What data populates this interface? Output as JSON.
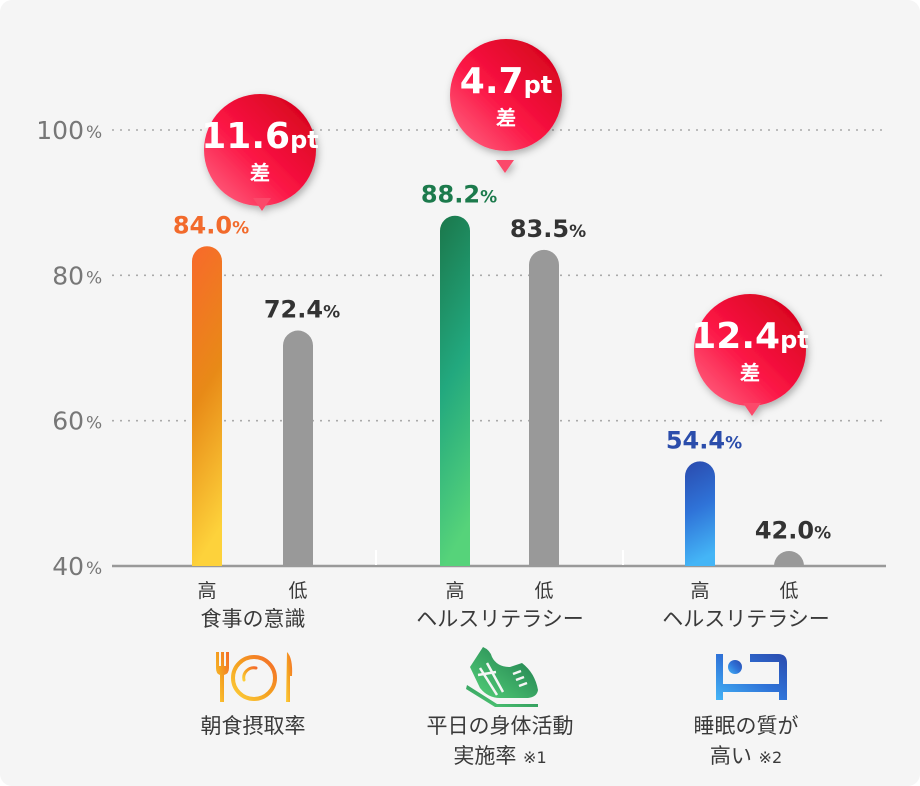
{
  "chart_data": {
    "type": "bar",
    "ylim": [
      40,
      100
    ],
    "yticks": [
      {
        "value": 100,
        "label": "100",
        "unit": "%"
      },
      {
        "value": 80,
        "label": "80",
        "unit": "%"
      },
      {
        "value": 60,
        "label": "60",
        "unit": "%"
      },
      {
        "value": 40,
        "label": "40",
        "unit": "%"
      }
    ],
    "grid": true,
    "groups": [
      {
        "bars": [
          {
            "key": "high",
            "label": "高",
            "value": 84.0,
            "value_text": "84.0",
            "unit": "%",
            "color": "#f26a2b",
            "grad_top": "#f8692b",
            "grad_mid": "#e88a17",
            "grad_bottom": "#fdd23b"
          },
          {
            "key": "low",
            "label": "低",
            "value": 72.4,
            "value_text": "72.4",
            "unit": "%",
            "color": "#333333",
            "grad_top": "#999999",
            "grad_mid": "#999999",
            "grad_bottom": "#999999"
          }
        ],
        "category": "食事の意識",
        "diff": {
          "value": "11.6",
          "unit": "pt",
          "suffix": "差"
        },
        "outcome": {
          "line1": "朝食摂取率",
          "line2": "",
          "note": ""
        },
        "icon": "fork-plate-knife-icon"
      },
      {
        "bars": [
          {
            "key": "high",
            "label": "高",
            "value": 88.2,
            "value_text": "88.2",
            "unit": "%",
            "color": "#1c7a4c",
            "grad_top": "#1b774b",
            "grad_mid": "#22a87e",
            "grad_bottom": "#56d37a"
          },
          {
            "key": "low",
            "label": "低",
            "value": 83.5,
            "value_text": "83.5",
            "unit": "%",
            "color": "#333333",
            "grad_top": "#999999",
            "grad_mid": "#999999",
            "grad_bottom": "#999999"
          }
        ],
        "category": "ヘルスリテラシー",
        "diff": {
          "value": "4.7",
          "unit": "pt",
          "suffix": "差"
        },
        "outcome": {
          "line1": "平日の身体活動",
          "line2": "実施率",
          "note": "※1"
        },
        "icon": "running-shoe-icon"
      },
      {
        "bars": [
          {
            "key": "high",
            "label": "高",
            "value": 54.4,
            "value_text": "54.4",
            "unit": "%",
            "color": "#2b4dab",
            "grad_top": "#2a4aad",
            "grad_mid": "#2f73d8",
            "grad_bottom": "#44b5f6"
          },
          {
            "key": "low",
            "label": "低",
            "value": 42.0,
            "value_text": "42.0",
            "unit": "%",
            "color": "#333333",
            "grad_top": "#999999",
            "grad_mid": "#999999",
            "grad_bottom": "#999999"
          }
        ],
        "category": "ヘルスリテラシー",
        "diff": {
          "value": "12.4",
          "unit": "pt",
          "suffix": "差"
        },
        "outcome": {
          "line1": "睡眠の質が",
          "line2": "高い",
          "note": "※2"
        },
        "icon": "bed-icon"
      }
    ],
    "badge_color": "#e8123c"
  }
}
